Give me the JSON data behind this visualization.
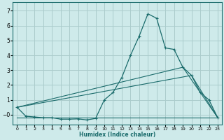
{
  "xlabel": "Humidex (Indice chaleur)",
  "background_color": "#ceeaea",
  "grid_color": "#aacccc",
  "line_color": "#1a6b6b",
  "xlim": [
    -0.5,
    23.5
  ],
  "ylim": [
    -0.65,
    7.6
  ],
  "yticks": [
    0,
    1,
    2,
    3,
    4,
    5,
    6,
    7
  ],
  "ytick_labels": [
    "−0",
    "1",
    "2",
    "3",
    "4",
    "5",
    "6",
    "7"
  ],
  "xticks": [
    0,
    1,
    2,
    3,
    4,
    5,
    6,
    7,
    8,
    9,
    10,
    11,
    12,
    13,
    14,
    15,
    16,
    17,
    18,
    19,
    20,
    21,
    22,
    23
  ],
  "series_main": {
    "x": [
      0,
      1,
      2,
      3,
      4,
      5,
      6,
      7,
      8,
      9,
      10,
      11,
      12,
      13,
      14,
      15,
      16,
      17,
      18,
      19,
      20,
      21,
      22,
      23
    ],
    "y": [
      0.5,
      -0.1,
      -0.15,
      -0.2,
      -0.2,
      -0.3,
      -0.3,
      -0.28,
      -0.35,
      -0.25,
      1.0,
      1.5,
      2.5,
      4.0,
      5.3,
      6.8,
      6.5,
      4.5,
      4.4,
      3.2,
      2.65,
      1.5,
      1.0,
      -0.2
    ]
  },
  "series_line1": {
    "x": [
      0,
      19,
      23
    ],
    "y": [
      0.5,
      3.2,
      -0.2
    ]
  },
  "series_line2": {
    "x": [
      0,
      20,
      23
    ],
    "y": [
      0.5,
      2.65,
      -0.2
    ]
  },
  "series_flat": {
    "x": [
      0,
      23
    ],
    "y": [
      -0.2,
      -0.2
    ]
  }
}
